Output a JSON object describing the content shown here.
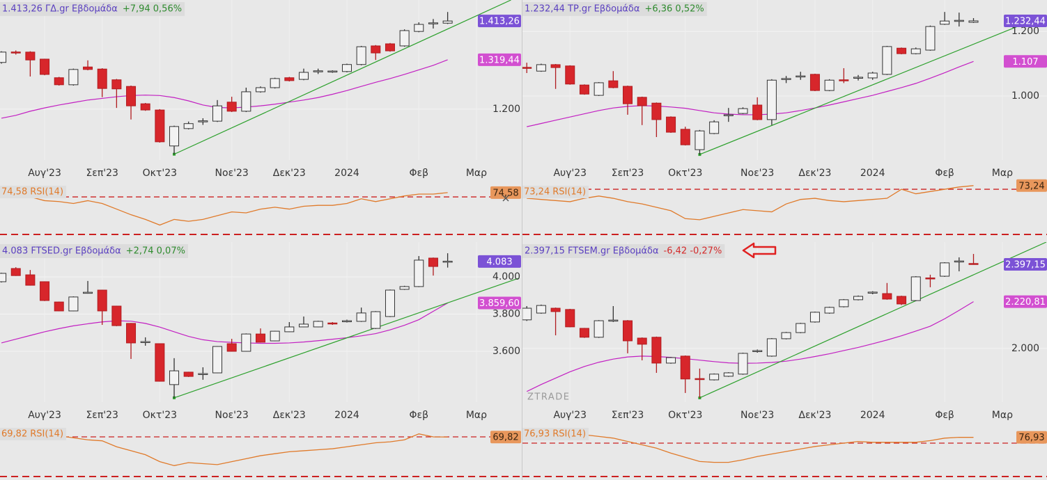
{
  "chart_data": [
    {
      "type": "candlestick",
      "title": "1.413,26 ΓΔ.gr Εβδομάδα",
      "change": "+7,94 0,56%",
      "change_color": "#2e8b2e",
      "open": [
        1313,
        1338,
        1338,
        1321,
        1276,
        1259,
        1302,
        1297,
        1271,
        1255,
        1213,
        1198,
        1111,
        1153,
        1170,
        1171,
        1217,
        1195,
        1242,
        1252,
        1276,
        1272,
        1291,
        1291,
        1291,
        1308,
        1353,
        1358,
        1353,
        1388,
        1407,
        1408
      ],
      "high": [
        1340,
        1342,
        1340,
        1322,
        1278,
        1298,
        1318,
        1299,
        1273,
        1257,
        1215,
        1200,
        1160,
        1170,
        1178,
        1222,
        1230,
        1252,
        1255,
        1276,
        1278,
        1298,
        1298,
        1294,
        1310,
        1353,
        1355,
        1360,
        1393,
        1410,
        1418,
        1435
      ],
      "low": [
        1310,
        1332,
        1279,
        1282,
        1257,
        1257,
        1294,
        1229,
        1203,
        1175,
        1196,
        1119,
        1091,
        1151,
        1162,
        1169,
        1193,
        1193,
        1240,
        1250,
        1267,
        1270,
        1285,
        1288,
        1289,
        1306,
        1319,
        1339,
        1351,
        1386,
        1395,
        1406
      ],
      "close": [
        1338,
        1336,
        1319,
        1284,
        1259,
        1296,
        1296,
        1250,
        1249,
        1208,
        1198,
        1121,
        1158,
        1165,
        1171,
        1208,
        1195,
        1242,
        1252,
        1274,
        1269,
        1289,
        1292,
        1291,
        1308,
        1351,
        1336,
        1341,
        1390,
        1405,
        1408,
        1413.26
      ],
      "close_label": "1.413,26",
      "up_color": "#f2f2f2",
      "down_color": "#d7262b",
      "label_color": "#7b52d6",
      "ma": {
        "color": "#c21fc2",
        "values": [
          1178,
          1185,
          1195,
          1203,
          1210,
          1216,
          1222,
          1226,
          1230,
          1233,
          1234,
          1233,
          1228,
          1220,
          1210,
          1204,
          1203,
          1205,
          1208,
          1212,
          1217,
          1222,
          1228,
          1236,
          1245,
          1255,
          1265,
          1274,
          1284,
          1295,
          1306,
          1319.44
        ],
        "value_label": "1.319,44",
        "label_color": "#d24fd0"
      },
      "trendline": {
        "color": "#2ca02c",
        "x": [
          12,
          35.4
        ],
        "y": [
          1091,
          1464
        ]
      },
      "xlim": [
        -0.1,
        36.1
      ],
      "xticks": [
        {
          "value": 3,
          "label": "Αυγ'23"
        },
        {
          "value": 7,
          "label": "Σεπ'23"
        },
        {
          "value": 11,
          "label": "Οκτ'23"
        },
        {
          "value": 16,
          "label": "Νοε'23"
        },
        {
          "value": 20,
          "label": "Δεκ'23"
        },
        {
          "value": 24,
          "label": "2024"
        },
        {
          "value": 29,
          "label": "Φεβ"
        },
        {
          "value": 33,
          "label": "Μαρ"
        }
      ],
      "ylim": [
        1077,
        1464
      ],
      "yticks": [
        {
          "value": 1200,
          "label": "1.200"
        }
      ],
      "rsi": {
        "name": "RSI(14)",
        "color": "#e07a2a",
        "values": [
          74,
          72,
          70,
          66,
          65,
          63,
          66,
          63,
          57,
          51,
          46,
          40,
          46,
          44,
          46,
          50,
          54,
          53,
          57,
          59,
          57,
          60,
          61,
          61,
          63,
          68,
          65,
          68,
          71,
          73,
          73,
          74.58
        ],
        "value_label": "74,58",
        "ylim": [
          30,
          85.6
        ],
        "levels": [
          70,
          30
        ],
        "level_color": "#cc2020"
      }
    },
    {
      "type": "candlestick",
      "title": "1.232,44 ΤΡ.gr Εβδομάδα",
      "change": "+6,36 0,52%",
      "change_color": "#2e8b2e",
      "open": [
        1088,
        1077,
        1097,
        1093,
        1034,
        1002,
        1047,
        1030,
        996,
        978,
        935,
        897,
        834,
        884,
        940,
        946,
        972,
        927,
        1052,
        1060,
        1067,
        1017,
        1049,
        1056,
        1056,
        1067,
        1148,
        1131,
        1142,
        1222,
        1232,
        1228
      ],
      "high": [
        1103,
        1100,
        1099,
        1095,
        1036,
        1043,
        1077,
        1032,
        998,
        980,
        937,
        905,
        895,
        925,
        963,
        965,
        996,
        1052,
        1062,
        1075,
        1069,
        1052,
        1086,
        1065,
        1075,
        1155,
        1150,
        1150,
        1218,
        1260,
        1258,
        1241
      ],
      "low": [
        1071,
        1075,
        1022,
        1035,
        1004,
        1000,
        1024,
        942,
        910,
        873,
        886,
        847,
        819,
        882,
        920,
        944,
        925,
        910,
        1040,
        1050,
        1015,
        1015,
        1040,
        1048,
        1050,
        1065,
        1129,
        1129,
        1140,
        1220,
        1215,
        1226
      ],
      "close": [
        1086,
        1097,
        1088,
        1037,
        1006,
        1041,
        1026,
        976,
        970,
        927,
        888,
        849,
        892,
        920,
        941,
        961,
        927,
        1049,
        1053,
        1061,
        1017,
        1049,
        1048,
        1057,
        1071,
        1153,
        1131,
        1146,
        1215,
        1232,
        1233,
        1232.44
      ],
      "close_label": "1.232,44",
      "up_color": "#f2f2f2",
      "down_color": "#d7262b",
      "label_color": "#7b52d6",
      "ma": {
        "color": "#c21fc2",
        "values": [
          905,
          915,
          925,
          935,
          945,
          955,
          963,
          968,
          970,
          969,
          966,
          962,
          955,
          948,
          944,
          942,
          942,
          944,
          948,
          955,
          963,
          972,
          982,
          992,
          1002,
          1014,
          1026,
          1039,
          1055,
          1072,
          1090,
          1107
        ],
        "value_label": "1.107",
        "label_color": "#d24fd0"
      },
      "trendline": {
        "color": "#2ca02c",
        "x": [
          12,
          36
        ],
        "y": [
          819,
          1250
        ]
      },
      "xlim": [
        -0.3,
        36.1
      ],
      "xticks": [
        {
          "value": 3,
          "label": "Αυγ'23"
        },
        {
          "value": 7,
          "label": "Σεπ'23"
        },
        {
          "value": 11,
          "label": "Οκτ'23"
        },
        {
          "value": 16,
          "label": "Νοε'23"
        },
        {
          "value": 20,
          "label": "Δεκ'23"
        },
        {
          "value": 24,
          "label": "2024"
        },
        {
          "value": 29,
          "label": "Φεβ"
        },
        {
          "value": 33,
          "label": "Μαρ"
        }
      ],
      "ylim": [
        802,
        1297
      ],
      "yticks": [
        {
          "value": 1000,
          "label": "1.000"
        },
        {
          "value": 1200,
          "label": "1.200"
        }
      ],
      "rsi": {
        "name": "RSI(14)",
        "color": "#e07a2a",
        "values": [
          62,
          61,
          60,
          59,
          62,
          64,
          62,
          59,
          57,
          54,
          51,
          44,
          43,
          46,
          49,
          52,
          51,
          50,
          57,
          61,
          62,
          60,
          59,
          60,
          61,
          62,
          70,
          66,
          68,
          70,
          72,
          73.24
        ],
        "value_label": "73,24",
        "ylim": [
          30,
          76.2
        ],
        "levels": [
          70,
          30
        ],
        "level_color": "#cc2020"
      }
    },
    {
      "type": "candlestick",
      "title": "4.083 FTSED.gr Εβδομάδα",
      "change": "+2,74 0,07%",
      "change_color": "#2e8b2e",
      "open": [
        3974,
        4045,
        4011,
        3974,
        3865,
        3817,
        3914,
        3929,
        3843,
        3750,
        3649,
        3641,
        3421,
        3488,
        3477,
        3484,
        3641,
        3600,
        3693,
        3656,
        3705,
        3731,
        3731,
        3750,
        3761,
        3761,
        3723,
        3787,
        3933,
        3948,
        4101,
        4080
      ],
      "high": [
        4022,
        4052,
        4037,
        3976,
        3867,
        3895,
        3978,
        3931,
        3845,
        3752,
        3675,
        3643,
        3563,
        3490,
        3514,
        3628,
        3667,
        3696,
        3723,
        3710,
        3757,
        3787,
        3764,
        3757,
        3770,
        3835,
        3816,
        3932,
        3952,
        4112,
        4104,
        4127
      ],
      "low": [
        3970,
        4005,
        3953,
        3870,
        3815,
        3815,
        3910,
        3742,
        3735,
        3559,
        3630,
        3437,
        3350,
        3462,
        3447,
        3482,
        3598,
        3598,
        3647,
        3654,
        3703,
        3729,
        3729,
        3742,
        3755,
        3758,
        3720,
        3784,
        3930,
        3945,
        4007,
        4050
      ],
      "close": [
        4019,
        4007,
        3955,
        3873,
        3817,
        3892,
        3915,
        3817,
        3738,
        3645,
        3650,
        3439,
        3495,
        3465,
        3478,
        3626,
        3600,
        3693,
        3649,
        3708,
        3731,
        3746,
        3761,
        3749,
        3762,
        3806,
        3813,
        3929,
        3948,
        4090,
        4056,
        4083
      ],
      "close_label": "4.083",
      "up_color": "#f2f2f2",
      "down_color": "#d7262b",
      "label_color": "#7b52d6",
      "ma": {
        "color": "#c21fc2",
        "values": [
          3645,
          3665,
          3685,
          3705,
          3722,
          3737,
          3748,
          3758,
          3764,
          3762,
          3750,
          3730,
          3705,
          3680,
          3662,
          3652,
          3648,
          3645,
          3643,
          3643,
          3645,
          3650,
          3657,
          3665,
          3673,
          3683,
          3695,
          3715,
          3740,
          3770,
          3815,
          3859.6
        ],
        "value_label": "3.859,60",
        "label_color": "#d24fd0"
      },
      "trendline": {
        "color": "#2ca02c",
        "x": [
          12,
          35.9
        ],
        "y": [
          3350,
          3992
        ]
      },
      "xlim": [
        -0.1,
        36.1
      ],
      "xticks": [
        {
          "value": 3,
          "label": "Αυγ'23"
        },
        {
          "value": 7,
          "label": "Σεπ'23"
        },
        {
          "value": 11,
          "label": "Οκτ'23"
        },
        {
          "value": 16,
          "label": "Νοε'23"
        },
        {
          "value": 20,
          "label": "Δεκ'23"
        },
        {
          "value": 24,
          "label": "2024"
        },
        {
          "value": 29,
          "label": "Φεβ"
        },
        {
          "value": 33,
          "label": "Μαρ"
        }
      ],
      "ylim": [
        3327,
        4187
      ],
      "yticks": [
        {
          "value": 3600,
          "label": "3.600"
        },
        {
          "value": 3800,
          "label": "3.800"
        },
        {
          "value": 4000,
          "label": "4.000"
        }
      ],
      "rsi": {
        "name": "RSI(14)",
        "color": "#e07a2a",
        "values": [
          77,
          76,
          74,
          73,
          71,
          69,
          67,
          66,
          60,
          56,
          52,
          45,
          41,
          44,
          43,
          42,
          45,
          48,
          51,
          53,
          55,
          56,
          57,
          58,
          60,
          62,
          64,
          65,
          67,
          73,
          70,
          69.82
        ],
        "value_label": "69,82",
        "ylim": [
          30,
          82.6
        ],
        "levels": [
          70,
          30
        ],
        "level_color": "#cc2020"
      }
    },
    {
      "type": "candlestick",
      "title": "2.397,15 FTSEM.gr Εβδομάδα",
      "change": "-6,42 -0,27%",
      "change_color": "#d42a2a",
      "watermark": "ZTRADE",
      "open": [
        2135,
        2167,
        2190,
        2184,
        2095,
        2053,
        2131,
        2131,
        2049,
        2053,
        1931,
        1964,
        1856,
        1852,
        1869,
        1879,
        1987,
        1964,
        2046,
        2075,
        2125,
        2167,
        2197,
        2230,
        2263,
        2259,
        2246,
        2226,
        2331,
        2341,
        2410,
        2400
      ],
      "high": [
        2200,
        2207,
        2193,
        2187,
        2097,
        2134,
        2200,
        2134,
        2052,
        2056,
        1960,
        1967,
        1905,
        1882,
        1888,
        1980,
        1995,
        2049,
        2078,
        2121,
        2174,
        2197,
        2233,
        2250,
        2270,
        2309,
        2249,
        2341,
        2348,
        2407,
        2430,
        2446
      ],
      "low": [
        2130,
        2164,
        2062,
        2100,
        2050,
        2050,
        2125,
        1977,
        1944,
        1885,
        1928,
        1790,
        1767,
        1849,
        1866,
        1876,
        1980,
        1961,
        2043,
        2072,
        2122,
        2164,
        2194,
        2227,
        2256,
        2230,
        2205,
        2223,
        2289,
        2338,
        2364,
        2395
      ],
      "close": [
        2190,
        2203,
        2174,
        2102,
        2053,
        2131,
        2132,
        2036,
        2020,
        1931,
        1957,
        1856,
        1855,
        1879,
        1885,
        1977,
        1988,
        2046,
        2075,
        2118,
        2171,
        2194,
        2230,
        2246,
        2264,
        2233,
        2210,
        2338,
        2330,
        2404,
        2411,
        2397.15
      ],
      "close_label": "2.397,15",
      "up_color": "#f2f2f2",
      "down_color": "#d7262b",
      "label_color": "#7b52d6",
      "ma": {
        "color": "#c21fc2",
        "values": [
          1797,
          1830,
          1860,
          1890,
          1915,
          1935,
          1950,
          1960,
          1964,
          1962,
          1958,
          1952,
          1945,
          1938,
          1932,
          1930,
          1931,
          1934,
          1940,
          1950,
          1962,
          1975,
          1990,
          2005,
          2022,
          2040,
          2060,
          2082,
          2105,
          2140,
          2180,
          2220.81
        ],
        "value_label": "2.220,81",
        "label_color": "#d24fd0"
      },
      "trendline": {
        "color": "#2ca02c",
        "x": [
          12,
          36.05
        ],
        "y": [
          1767,
          2502
        ]
      },
      "xlim": [
        -0.3,
        36.1
      ],
      "xticks": [
        {
          "value": 3,
          "label": "Αυγ'23"
        },
        {
          "value": 7,
          "label": "Σεπ'23"
        },
        {
          "value": 11,
          "label": "Οκτ'23"
        },
        {
          "value": 16,
          "label": "Νοε'23"
        },
        {
          "value": 20,
          "label": "Δεκ'23"
        },
        {
          "value": 24,
          "label": "2024"
        },
        {
          "value": 29,
          "label": "Φεβ"
        },
        {
          "value": 33,
          "label": "Μαρ"
        }
      ],
      "ylim": [
        1747,
        2502
      ],
      "yticks": [
        {
          "value": 2000,
          "label": "2.000"
        }
      ],
      "rsi": {
        "name": "RSI(14)",
        "color": "#e07a2a",
        "values": [
          87,
          86,
          84,
          82,
          80,
          78,
          76,
          72,
          68,
          64,
          58,
          53,
          48,
          47,
          47,
          50,
          54,
          57,
          60,
          63,
          66,
          68,
          70,
          72,
          71,
          71,
          71,
          71,
          73,
          76,
          77,
          76.93
        ],
        "value_label": "76,93",
        "ylim": [
          30,
          92.5
        ],
        "levels": [
          70,
          30
        ],
        "level_color": "#cc2020"
      }
    }
  ]
}
